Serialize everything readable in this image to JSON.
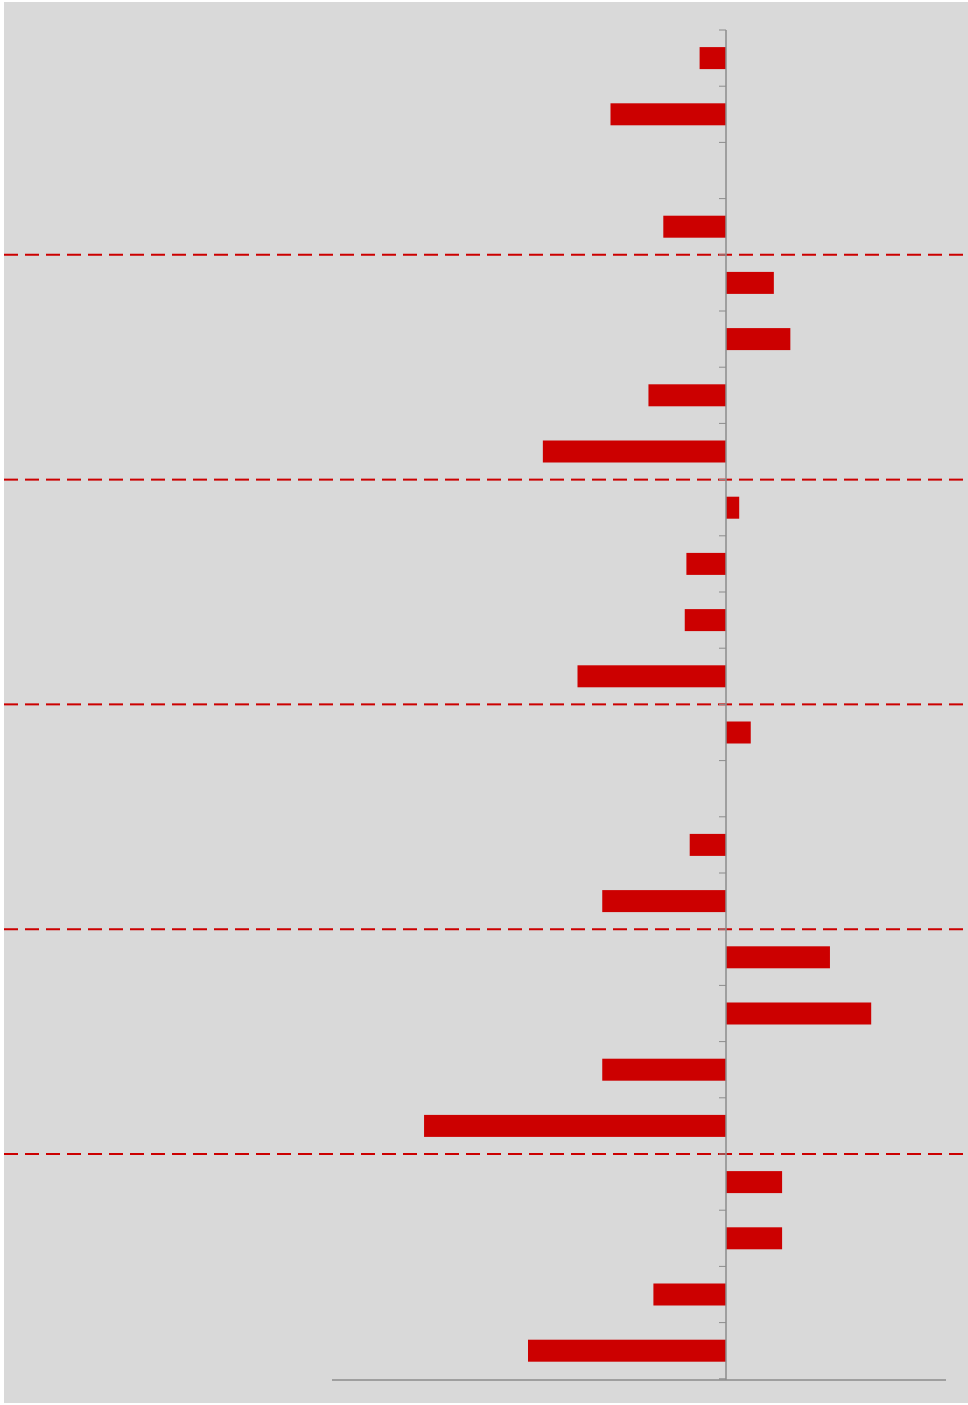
{
  "colors": {
    "background": "#ffffff",
    "plot_background": "#d9d9d9",
    "bar": "#cc0000",
    "axis": "#8c8c8c",
    "separator": "#cc0000"
  },
  "chart_data": {
    "type": "bar",
    "orientation": "horizontal",
    "title": "",
    "xlabel": "",
    "ylabel": "",
    "grid": false,
    "legend": "none",
    "tick_labels_visible": false,
    "xlim": [
      -100,
      60
    ],
    "values": [
      -1.6,
      -7.0,
      0,
      -3.8,
      2.9,
      3.9,
      -4.7,
      -11.1,
      0.8,
      -2.4,
      -2.5,
      -9.0,
      1.5,
      0,
      -2.2,
      -7.5,
      6.3,
      8.8,
      -7.5,
      -18.3,
      3.4,
      3.4,
      -4.4,
      -12.0
    ],
    "group_size": 4,
    "group_separators": "dashed"
  }
}
